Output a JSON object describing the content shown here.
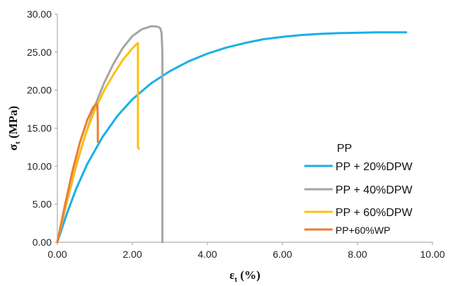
{
  "chart_data": {
    "type": "line",
    "title": "",
    "xlabel": {
      "symbol": "ε",
      "sub": "t",
      "rest": " (%)"
    },
    "ylabel": {
      "symbol": "σ",
      "sub": "t",
      "rest": " (MPa)"
    },
    "xlim": [
      0,
      10
    ],
    "ylim": [
      0,
      30
    ],
    "x_ticks": [
      "0.00",
      "2.00",
      "4.00",
      "6.00",
      "8.00",
      "10.00"
    ],
    "y_ticks": [
      "0.00",
      "5.00",
      "10.00",
      "15.00",
      "20.00",
      "25.00",
      "30.00"
    ],
    "grid": false,
    "legend_position": "right",
    "legend_heading": "PP",
    "series": [
      {
        "name": "PP + 20%DPW",
        "color": "#1ab0e6",
        "x": [
          0,
          0.25,
          0.5,
          0.8,
          1.2,
          1.6,
          2.0,
          2.5,
          3.0,
          3.5,
          4.0,
          4.5,
          5.0,
          5.5,
          6.0,
          6.5,
          7.0,
          7.5,
          8.0,
          8.5,
          9.0,
          9.3
        ],
        "y": [
          0,
          3.7,
          7.0,
          10.3,
          13.8,
          16.6,
          18.8,
          20.9,
          22.5,
          23.8,
          24.8,
          25.6,
          26.2,
          26.7,
          27.0,
          27.25,
          27.4,
          27.5,
          27.55,
          27.6,
          27.6,
          27.6
        ]
      },
      {
        "name": "PP + 40%DPW",
        "color": "#a5a5a5",
        "x": [
          0,
          0.25,
          0.5,
          0.75,
          1.0,
          1.25,
          1.5,
          1.75,
          2.0,
          2.25,
          2.5,
          2.6,
          2.7,
          2.75,
          2.78,
          2.8,
          2.8
        ],
        "y": [
          0,
          5.2,
          10.0,
          14.2,
          17.9,
          21.0,
          23.5,
          25.6,
          27.1,
          28.0,
          28.4,
          28.4,
          28.3,
          28.1,
          27.5,
          25.0,
          0
        ]
      },
      {
        "name": "PP + 60%DPW",
        "color": "#fcc10f",
        "x": [
          0,
          0.25,
          0.5,
          0.75,
          1.0,
          1.25,
          1.5,
          1.75,
          2.0,
          2.1,
          2.15,
          2.15,
          2.17
        ],
        "y": [
          0,
          5.4,
          10.2,
          14.2,
          17.4,
          20.0,
          22.1,
          24.0,
          25.5,
          26.0,
          26.2,
          12.5,
          12.3
        ]
      },
      {
        "name": "PP+60%WP",
        "color": "#ed7d31",
        "x": [
          0,
          0.2,
          0.4,
          0.6,
          0.8,
          0.95,
          1.02,
          1.05,
          1.07,
          1.08,
          1.08
        ],
        "y": [
          0,
          4.8,
          9.3,
          13.1,
          16.1,
          17.7,
          18.1,
          18.2,
          17.8,
          16.0,
          13.2
        ]
      }
    ]
  }
}
